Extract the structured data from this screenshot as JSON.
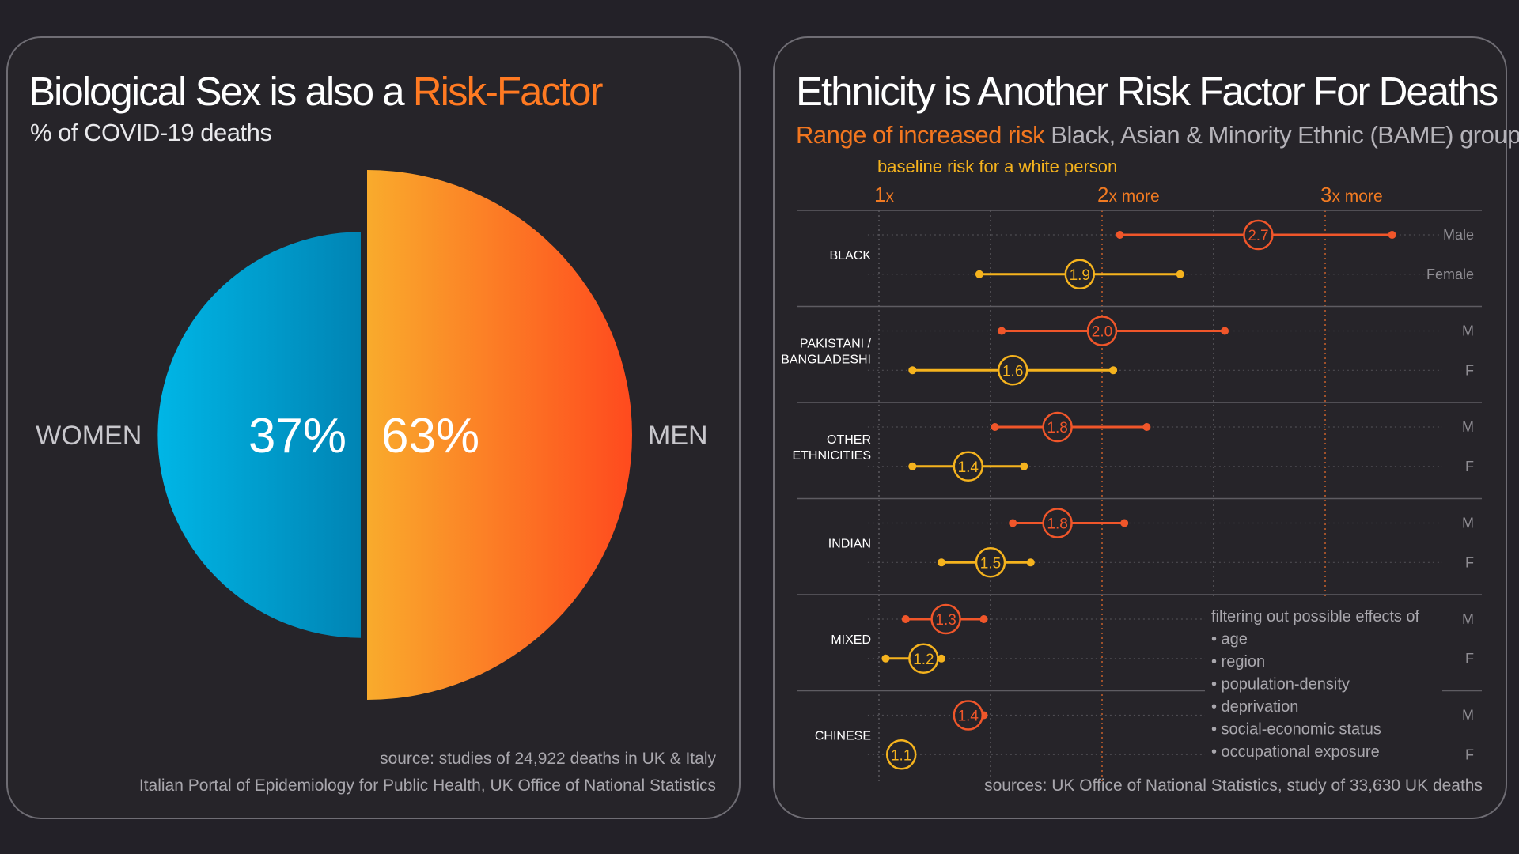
{
  "left_panel": {
    "title_main": "Biological Sex is also a ",
    "title_accent": "Risk-Factor",
    "subtitle": "% of COVID-19 deaths",
    "source_line1": "source: studies of 24,922 deaths in UK & Italy",
    "source_line2": "Italian Portal of Epidemiology for Public Health, UK Office of National Statistics"
  },
  "right_panel": {
    "title": "Ethnicity is Another Risk Factor For Deaths",
    "subtitle_accent": "Range of increased risk",
    "subtitle_rest": " Black, Asian & Minority Ethnic (BAME) groups",
    "baseline_label": "baseline risk for a white person",
    "filter_note": [
      "filtering out possible effects of",
      "• age",
      "• region",
      "• population-density",
      "• deprivation",
      "• social-economic status",
      "• occupational exposure"
    ],
    "source": "sources: UK Office of National Statistics, study of 33,630 UK deaths"
  },
  "colors": {
    "women_light": "#00b6e6",
    "women_dark": "#0085b5",
    "men_light": "#f9ab2c",
    "men_dark": "#ff4c1e",
    "male_range": "#f0562a",
    "female_range": "#f5b31e",
    "tick_orange": "#f07a22",
    "row_label_gray": "#8f8d93"
  },
  "chart_data": [
    {
      "type": "pie",
      "categories": [
        "WOMEN",
        "MEN"
      ],
      "values": [
        37,
        63
      ],
      "labels": [
        "37%",
        "63%"
      ]
    },
    {
      "type": "range",
      "x_ticks": [
        {
          "value": 1,
          "num": "1",
          "suffix": "x"
        },
        {
          "value": 2,
          "num": "2",
          "suffix": "x more"
        },
        {
          "value": 3,
          "num": "3",
          "suffix": "x more"
        }
      ],
      "xlim": [
        0.6,
        3.6
      ],
      "groups": [
        {
          "name_lines": [
            "BLACK"
          ],
          "rows": [
            {
              "sex": "Male",
              "low": 2.08,
              "high": 3.3,
              "value": 2.7,
              "label": "2.7"
            },
            {
              "sex": "Female",
              "low": 1.45,
              "high": 2.35,
              "value": 1.9,
              "label": "1.9"
            }
          ]
        },
        {
          "name_lines": [
            "PAKISTANI /",
            "BANGLADESHI"
          ],
          "rows": [
            {
              "sex": "M",
              "low": 1.55,
              "high": 2.55,
              "value": 2.0,
              "label": "2.0"
            },
            {
              "sex": "F",
              "low": 1.15,
              "high": 2.05,
              "value": 1.6,
              "label": "1.6"
            }
          ]
        },
        {
          "name_lines": [
            "OTHER",
            "ETHNICITIES"
          ],
          "rows": [
            {
              "sex": "M",
              "low": 1.52,
              "high": 2.2,
              "value": 1.8,
              "label": "1.8"
            },
            {
              "sex": "F",
              "low": 1.15,
              "high": 1.65,
              "value": 1.4,
              "label": "1.4"
            }
          ]
        },
        {
          "name_lines": [
            "INDIAN"
          ],
          "rows": [
            {
              "sex": "M",
              "low": 1.6,
              "high": 2.1,
              "value": 1.8,
              "label": "1.8"
            },
            {
              "sex": "F",
              "low": 1.28,
              "high": 1.68,
              "value": 1.5,
              "label": "1.5"
            }
          ]
        },
        {
          "name_lines": [
            "MIXED"
          ],
          "rows": [
            {
              "sex": "M",
              "low": 1.12,
              "high": 1.47,
              "value": 1.3,
              "label": "1.3"
            },
            {
              "sex": "F",
              "low": 1.03,
              "high": 1.28,
              "value": 1.2,
              "label": "1.2"
            }
          ]
        },
        {
          "name_lines": [
            "CHINESE"
          ],
          "rows": [
            {
              "sex": "M",
              "low": 1.35,
              "high": 1.47,
              "value": 1.4,
              "label": "1.4"
            },
            {
              "sex": "F",
              "low": 1.1,
              "high": 1.1,
              "value": 1.1,
              "label": "1.1"
            }
          ]
        }
      ]
    }
  ]
}
